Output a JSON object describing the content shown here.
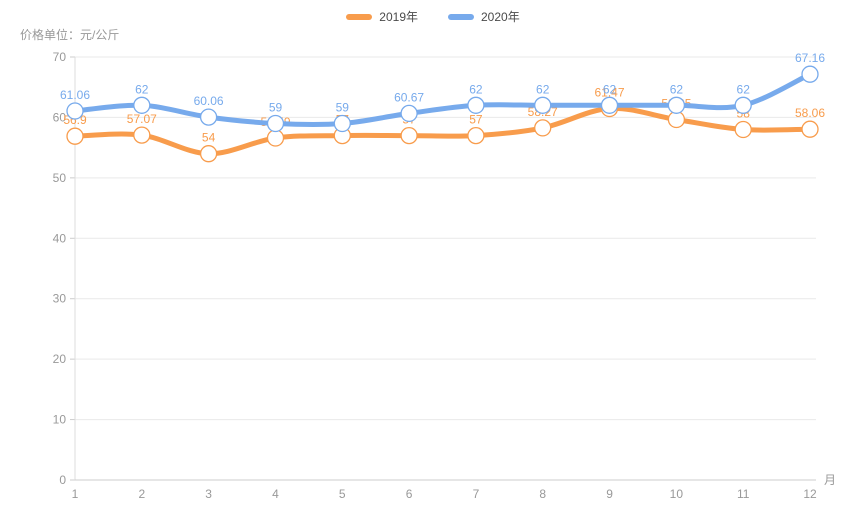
{
  "chart_data": {
    "type": "line",
    "title": "",
    "x": [
      "1",
      "2",
      "3",
      "4",
      "5",
      "6",
      "7",
      "8",
      "9",
      "10",
      "11",
      "12"
    ],
    "xlabel": "月",
    "ylabel": "价格单位：元/公斤",
    "ylim": [
      0,
      70
    ],
    "yticks": [
      0,
      10,
      20,
      30,
      40,
      50,
      60,
      70
    ],
    "grid": true,
    "smooth": true,
    "legend_position": "top",
    "series": [
      {
        "name": "2019年",
        "color": "#f89c4c",
        "values": [
          56.9,
          57.07,
          54,
          56.59,
          57,
          57,
          57,
          58.27,
          61.47,
          59.65,
          58,
          58.06
        ]
      },
      {
        "name": "2020年",
        "color": "#77aaec",
        "values": [
          61.06,
          62,
          60.06,
          59,
          59,
          60.67,
          62,
          62,
          62,
          62,
          62,
          67.16
        ]
      }
    ],
    "point_labels_visible": true
  },
  "style": {
    "axis_line_color": "#cccccc",
    "y_axis_line_color": "#dddddd",
    "grid_line_color": "#e9e9e9",
    "tick_label_color": "#999999",
    "legend_text_color": "#4a4a4a",
    "background": "#ffffff"
  }
}
